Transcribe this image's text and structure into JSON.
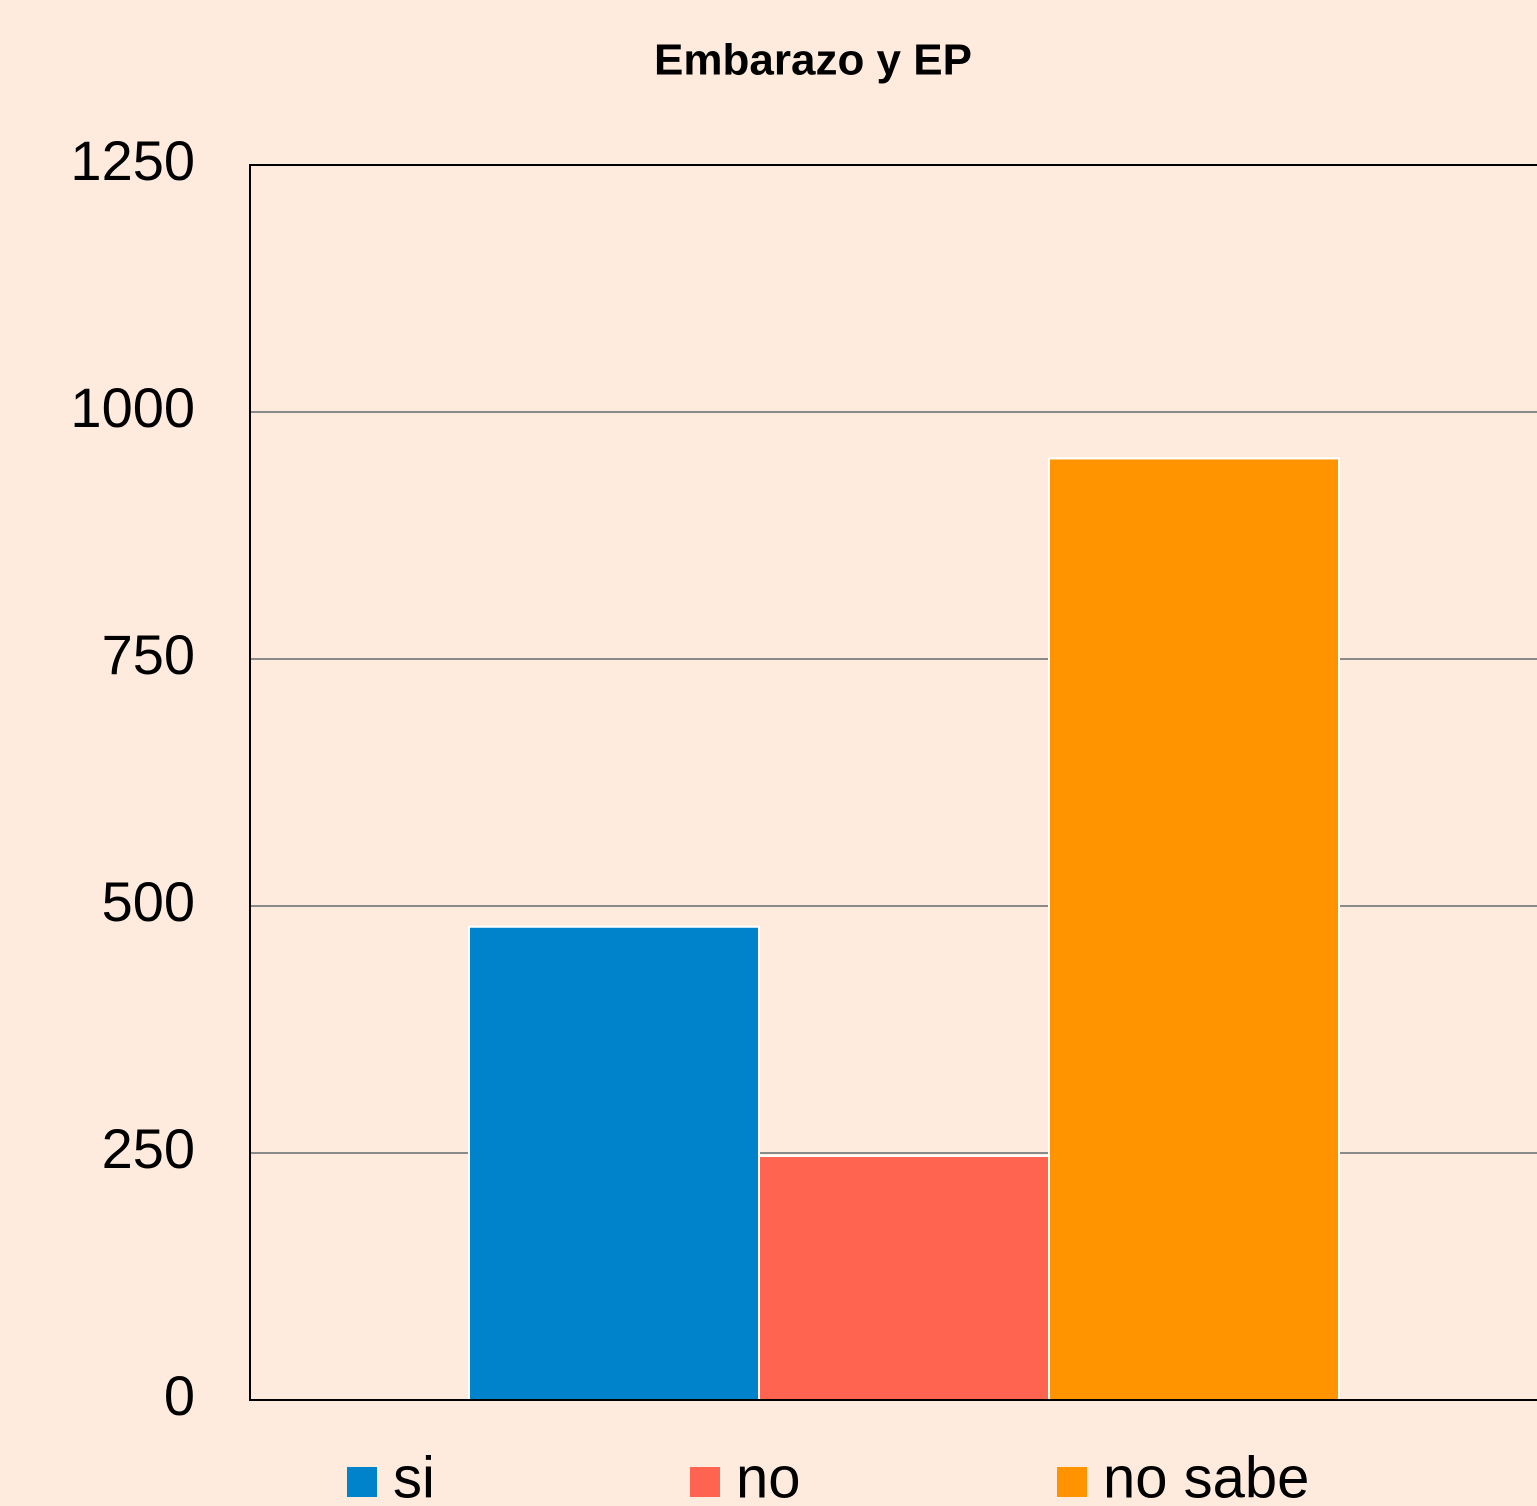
{
  "chart_data": {
    "type": "bar",
    "title": "Embarazo y EP",
    "categories": [
      null
    ],
    "series": [
      {
        "name": "si",
        "color": "#0083cb",
        "values": [
          479
        ]
      },
      {
        "name": "no",
        "color": "#ff6450",
        "values": [
          247
        ]
      },
      {
        "name": "no sabe",
        "color": "#ff9400",
        "values": [
          953
        ]
      }
    ],
    "ylim": [
      0,
      1250
    ],
    "yticks": [
      0,
      250,
      500,
      750,
      1000,
      1250
    ],
    "grid": true,
    "legend": "bottom"
  }
}
